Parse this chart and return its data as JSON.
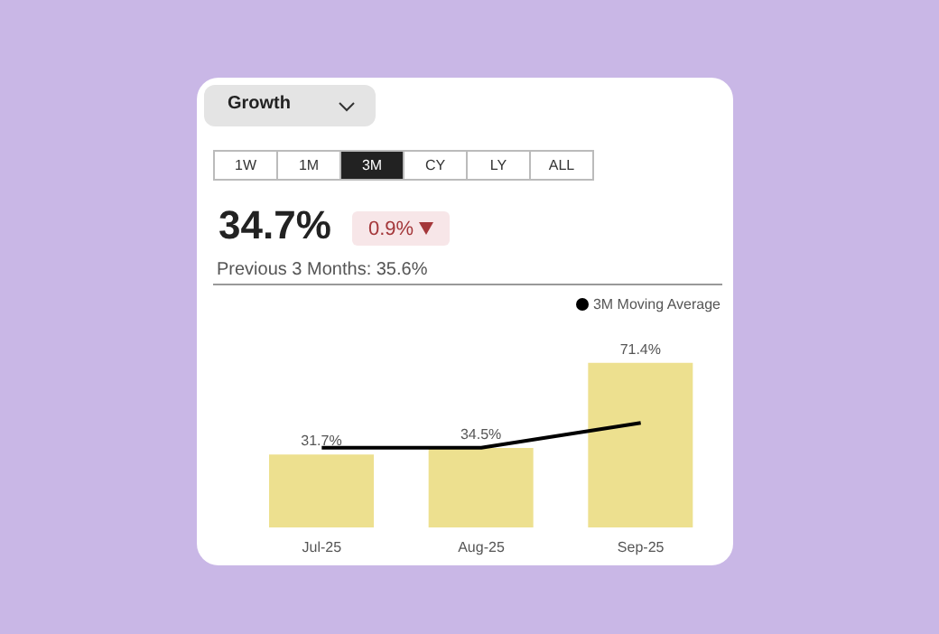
{
  "chart_data": {
    "type": "bar",
    "title": "34.7%",
    "subtitle": "Previous 3 Months: 35.6%",
    "annotations": [
      "Growth",
      "1W",
      "1M",
      "3M",
      "CY",
      "LY",
      "ALL",
      "0.9%"
    ],
    "categories": [
      "Jul-25",
      "Aug-25",
      "Sep-25"
    ],
    "series": [
      {
        "color": "#ede08f",
        "values": [
          31.7,
          34.5,
          71.4
        ],
        "value_labels": [
          "31.7%",
          "34.5%",
          "71.4%"
        ]
      },
      {
        "type": "line",
        "name": "3M Moving Average",
        "color": "#000000",
        "values": [
          34.6,
          34.6,
          45.4
        ]
      }
    ],
    "legend": "top right",
    "grid": false,
    "marker": "none"
  }
}
